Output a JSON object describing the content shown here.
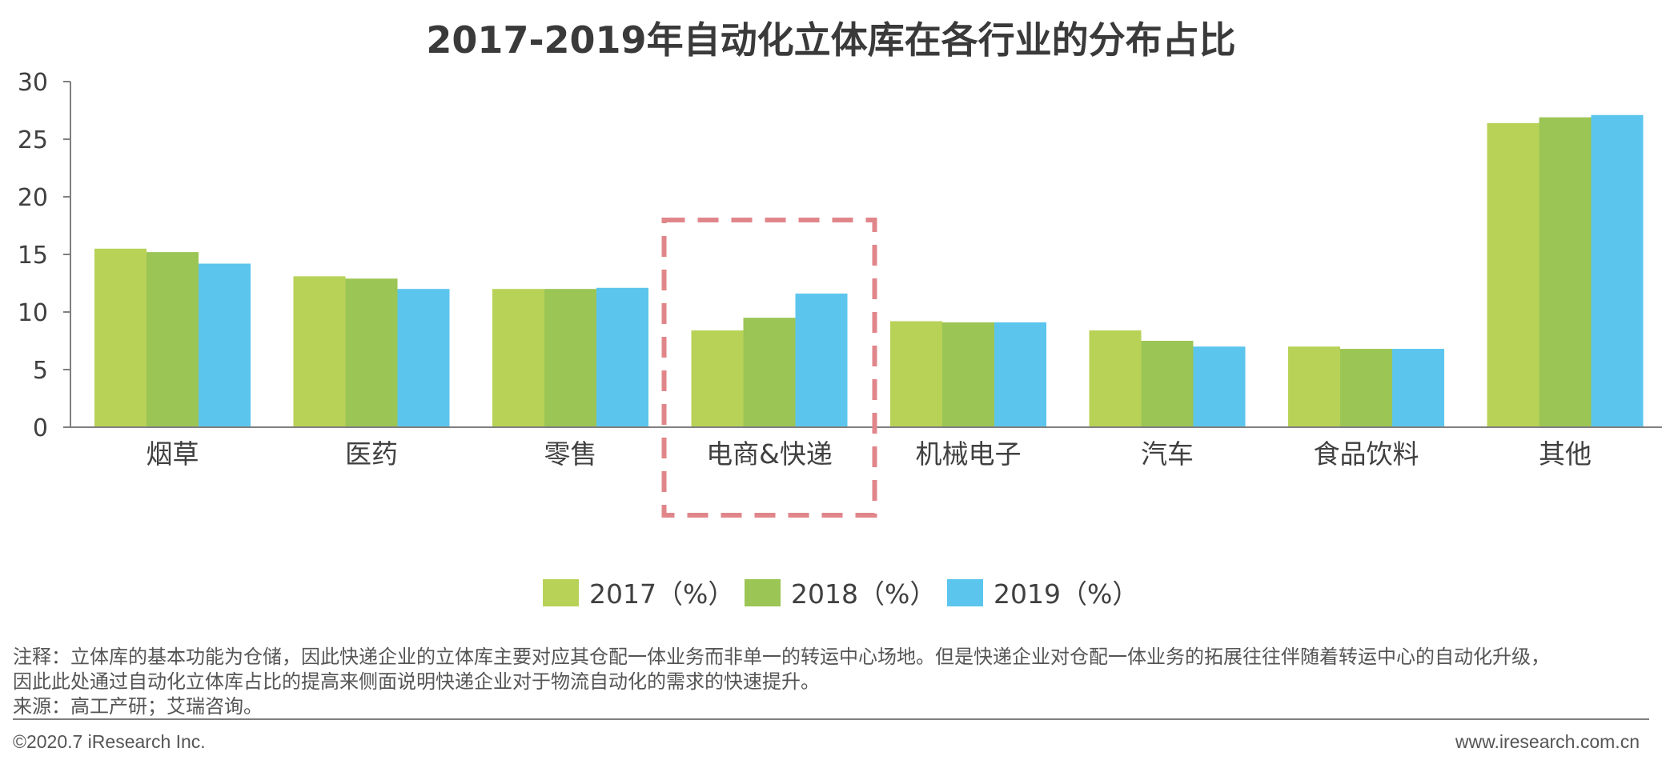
{
  "chart_data": {
    "type": "bar",
    "title": "2017-2019年自动化立体库在各行业的分布占比",
    "xlabel": "",
    "ylabel": "",
    "ylim": [
      0,
      30
    ],
    "yticks": [
      0,
      5,
      10,
      15,
      20,
      25,
      30
    ],
    "grid": false,
    "legend_position": "bottom",
    "categories": [
      "烟草",
      "医药",
      "零售",
      "电商&快递",
      "机械电子",
      "汽车",
      "食品饮料",
      "其他"
    ],
    "series": [
      {
        "name": "2017（%）",
        "color": "#B8D257",
        "values": [
          15.5,
          13.1,
          12.0,
          8.4,
          9.2,
          8.4,
          7.0,
          26.4
        ]
      },
      {
        "name": "2018（%）",
        "color": "#9BC554",
        "values": [
          15.2,
          12.9,
          12.0,
          9.5,
          9.1,
          7.5,
          6.8,
          26.9
        ]
      },
      {
        "name": "2019（%）",
        "color": "#5BC5EE",
        "values": [
          14.2,
          12.0,
          12.1,
          11.6,
          9.1,
          7.0,
          6.8,
          27.1
        ]
      }
    ],
    "highlight": {
      "category": "电商&快递",
      "style": "dashed-box",
      "color": "#E0868A"
    }
  },
  "notes": {
    "line1": "注释：立体库的基本功能为仓储，因此快递企业的立体库主要对应其仓配一体业务而非单一的转运中心场地。但是快递企业对仓配一体业务的拓展往往伴随着转运中心的自动化升级，",
    "line2": "因此此处通过自动化立体库占比的提高来侧面说明快递企业对于物流自动化的需求的快速提升。",
    "source": "来源：高工产研；艾瑞咨询。"
  },
  "footer": {
    "copyright": "©2020.7 iResearch Inc.",
    "website": "www.iresearch.com.cn"
  }
}
